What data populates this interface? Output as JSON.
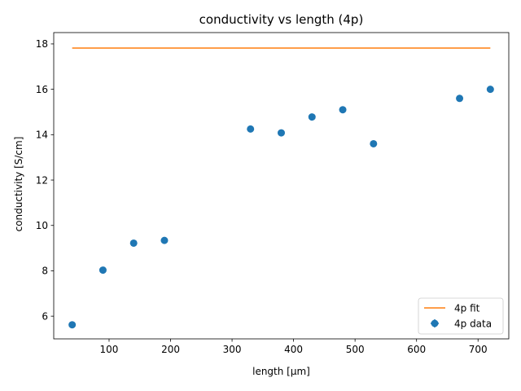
{
  "chart_data": {
    "type": "scatter",
    "title": "conductivity vs length (4p)",
    "xlabel": "length [μm]",
    "ylabel": "conductivity [S/cm]",
    "xlim": [
      10,
      750
    ],
    "ylim": [
      5,
      18.5
    ],
    "xticks": [
      100,
      200,
      300,
      400,
      500,
      600,
      700
    ],
    "yticks": [
      6,
      8,
      10,
      12,
      14,
      16,
      18
    ],
    "grid": false,
    "legend_position": "bottom-right",
    "series": [
      {
        "name": "4p data",
        "kind": "scatter",
        "color": "#1f77b4",
        "x": [
          40,
          90,
          140,
          190,
          330,
          380,
          430,
          480,
          530,
          670,
          720
        ],
        "y": [
          5.62,
          8.03,
          9.22,
          9.34,
          14.25,
          14.08,
          14.78,
          15.1,
          13.6,
          15.6,
          16.0
        ]
      },
      {
        "name": "4p fit",
        "kind": "line",
        "color": "#ff7f0e",
        "x": [
          40,
          720
        ],
        "y": [
          17.82,
          17.82
        ]
      }
    ]
  }
}
